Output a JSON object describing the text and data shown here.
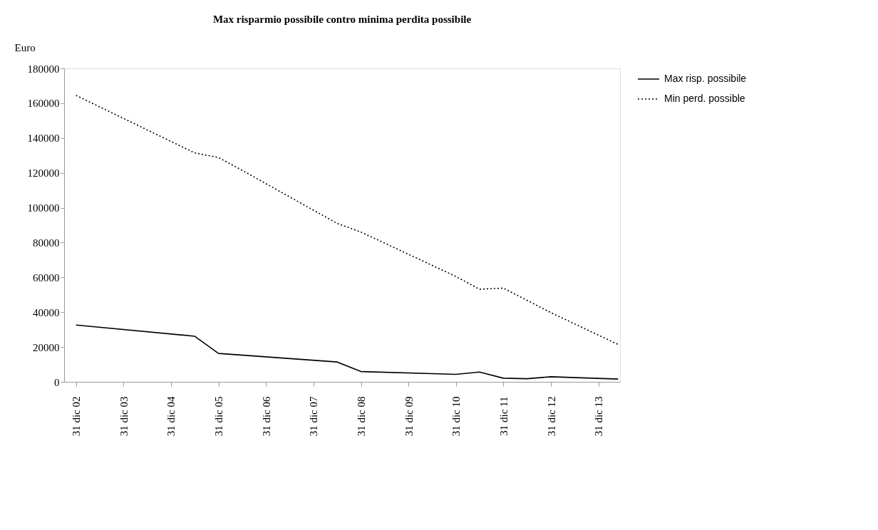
{
  "chart_data": {
    "type": "line",
    "title": "Max risparmio possibile contro minima perdita possibile",
    "ylabel": "Euro",
    "xlim": [
      "2002-10-01",
      "2014-06-15"
    ],
    "xticks": [
      {
        "value": "2002-12-31",
        "label": "31 dic 02"
      },
      {
        "value": "2003-12-31",
        "label": "31 dic 03"
      },
      {
        "value": "2004-12-31",
        "label": "31 dic 04"
      },
      {
        "value": "2005-12-31",
        "label": "31 dic 05"
      },
      {
        "value": "2006-12-31",
        "label": "31 dic 06"
      },
      {
        "value": "2007-12-31",
        "label": "31 dic 07"
      },
      {
        "value": "2008-12-31",
        "label": "31 dic 08"
      },
      {
        "value": "2009-12-31",
        "label": "31 dic 09"
      },
      {
        "value": "2010-12-31",
        "label": "31 dic 10"
      },
      {
        "value": "2011-12-31",
        "label": "31 dic 11"
      },
      {
        "value": "2012-12-31",
        "label": "31 dic 12"
      },
      {
        "value": "2013-12-31",
        "label": "31 dic 13"
      }
    ],
    "ylim": [
      0,
      180000
    ],
    "yticks": [
      0,
      20000,
      40000,
      60000,
      80000,
      100000,
      120000,
      140000,
      160000,
      180000
    ],
    "grid": false,
    "legend": "right",
    "marker": "none",
    "series": [
      {
        "name": "Max risp. possibile",
        "color": "#000000",
        "line_style": "solid",
        "x": [
          "2002-12-31",
          "2005-06-30",
          "2005-12-31",
          "2008-06-30",
          "2008-12-31",
          "2010-12-31",
          "2011-06-30",
          "2011-12-31",
          "2012-06-30",
          "2012-12-31",
          "2014-05-31"
        ],
        "values": [
          32600,
          26200,
          16300,
          11400,
          5900,
          4300,
          5600,
          2100,
          1800,
          2900,
          1600
        ]
      },
      {
        "name": "Min perd. possible",
        "color": "#000000",
        "line_style": "dotted",
        "x": [
          "2002-12-31",
          "2005-06-30",
          "2005-12-31",
          "2006-06-30",
          "2008-06-30",
          "2008-12-31",
          "2010-12-31",
          "2011-06-30",
          "2011-12-31",
          "2012-12-31",
          "2014-05-31"
        ],
        "values": [
          164500,
          131500,
          128800,
          121500,
          91000,
          86000,
          60500,
          53200,
          53800,
          39700,
          21500
        ]
      }
    ]
  }
}
